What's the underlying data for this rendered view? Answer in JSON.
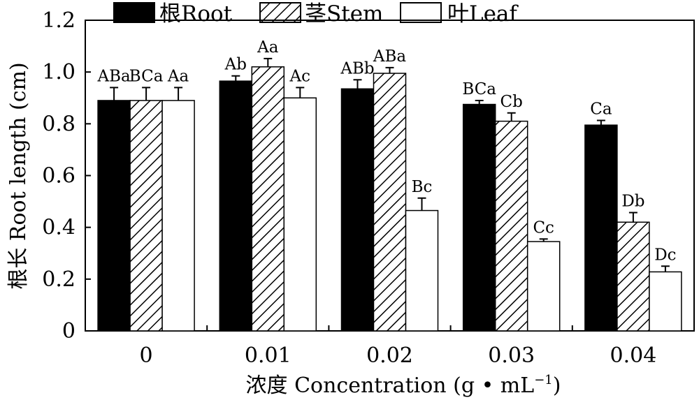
{
  "chart_data": {
    "type": "bar",
    "ylabel": "根长 Root length (cm)",
    "xlabel": "浓度 Concentration (g • mL",
    "xlabel_sup": "−1",
    "xlabel_close": ")",
    "categories": [
      "0",
      "0.01",
      "0.02",
      "0.03",
      "0.04"
    ],
    "ylim": [
      0,
      1.2
    ],
    "yticks": [
      "0",
      "0.2",
      "0.4",
      "0.6",
      "0.8",
      "1.0",
      "1.2"
    ],
    "grid": false,
    "legend_position": "top",
    "series": [
      {
        "name": "根Root",
        "fill": "black",
        "values": [
          0.89,
          0.965,
          0.935,
          0.875,
          0.795
        ],
        "errors": [
          0.05,
          0.02,
          0.035,
          0.015,
          0.018
        ],
        "labels": [
          "ABa",
          "Ab",
          "ABb",
          "BCa",
          "Ca"
        ]
      },
      {
        "name": "茎Stem",
        "fill": "hatch",
        "values": [
          0.89,
          1.02,
          0.995,
          0.81,
          0.42
        ],
        "errors": [
          0.05,
          0.032,
          0.022,
          0.032,
          0.037
        ],
        "labels": [
          "BCa",
          "Aa",
          "ABa",
          "Cb",
          "Db"
        ]
      },
      {
        "name": "叶Leaf",
        "fill": "white",
        "values": [
          0.89,
          0.9,
          0.465,
          0.345,
          0.228
        ],
        "errors": [
          0.05,
          0.04,
          0.048,
          0.01,
          0.022
        ],
        "labels": [
          "Aa",
          "Ac",
          "Bc",
          "Cc",
          "Dc"
        ]
      }
    ]
  }
}
